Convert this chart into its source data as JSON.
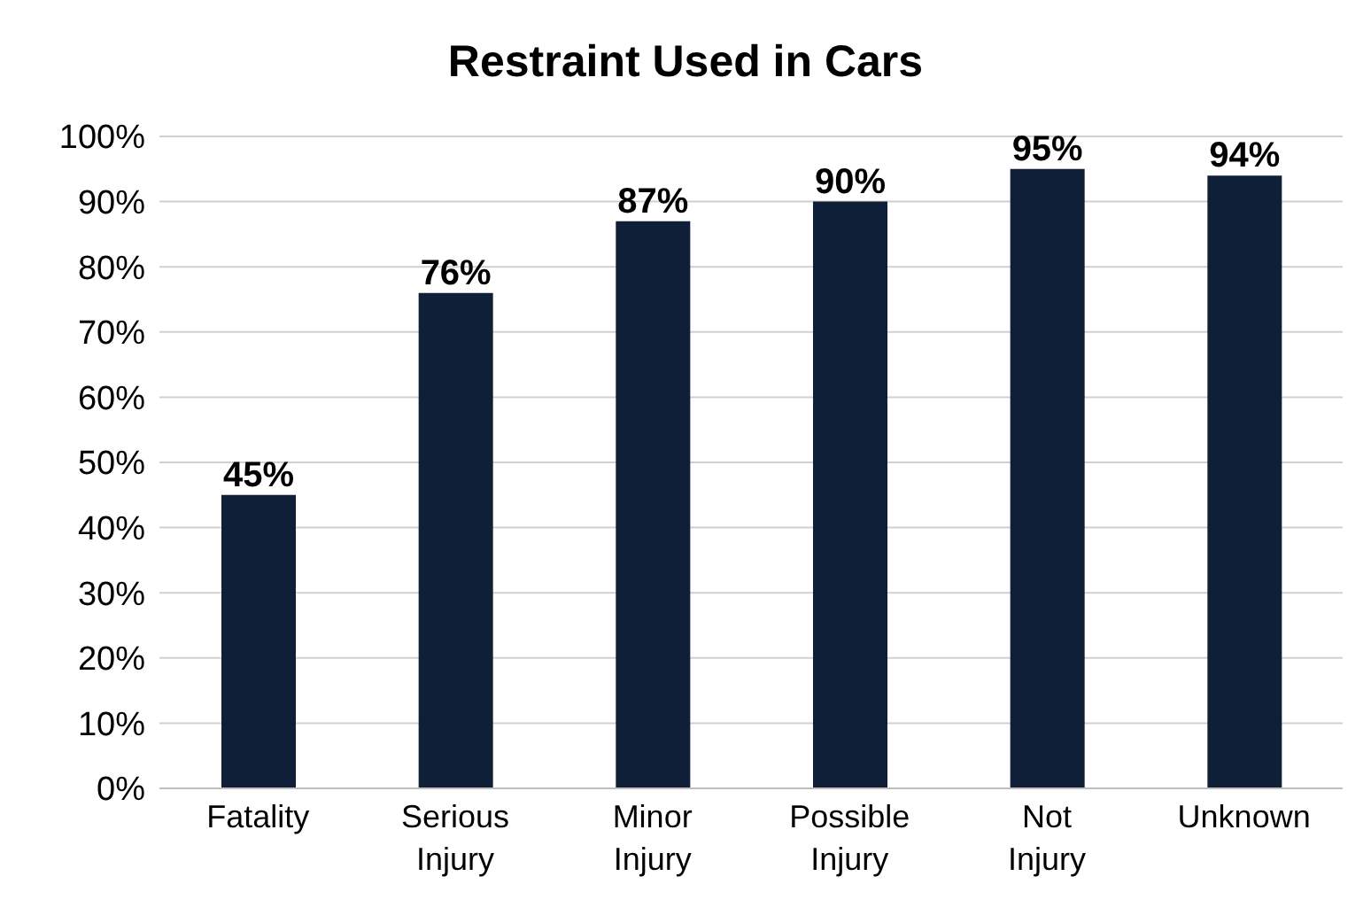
{
  "chart_data": {
    "type": "bar",
    "title": "Restraint Used in Cars",
    "categories": [
      "Fatality",
      "Serious Injury",
      "Minor Injury",
      "Possible Injury",
      "Not Injury",
      "Unknown"
    ],
    "values": [
      45,
      76,
      87,
      90,
      95,
      94
    ],
    "color": "#101f38",
    "ylim": [
      0,
      100
    ],
    "yticks": [
      {
        "value": 0,
        "label": "0%"
      },
      {
        "value": 10,
        "label": "10%"
      },
      {
        "value": 20,
        "label": "20%"
      },
      {
        "value": 30,
        "label": "30%"
      },
      {
        "value": 40,
        "label": "40%"
      },
      {
        "value": 50,
        "label": "50%"
      },
      {
        "value": 60,
        "label": "60%"
      },
      {
        "value": 70,
        "label": "70%"
      },
      {
        "value": 80,
        "label": "80%"
      },
      {
        "value": 90,
        "label": "90%"
      },
      {
        "value": 100,
        "label": "100%"
      }
    ],
    "value_labels": [
      "45%",
      "76%",
      "87%",
      "90%",
      "95%",
      "94%"
    ],
    "grid": "y",
    "legend": false
  }
}
